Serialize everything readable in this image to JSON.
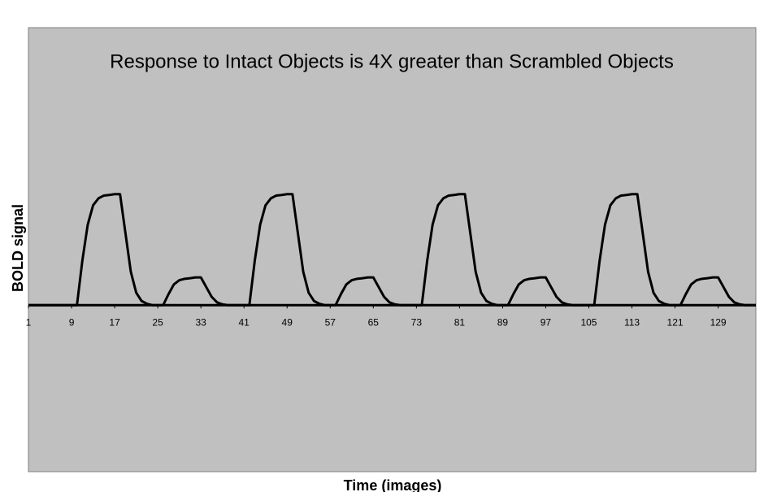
{
  "chart_data": {
    "type": "line",
    "title": "Response to Intact Objects is 4X greater than Scrambled Objects",
    "x_label": "Time (images)",
    "y_label": "BOLD signal",
    "x": [
      1,
      2,
      3,
      4,
      5,
      6,
      7,
      8,
      9,
      10,
      11,
      12,
      13,
      14,
      15,
      16,
      17,
      18,
      19,
      20,
      21,
      22,
      23,
      24,
      25,
      26,
      27,
      28,
      29,
      30,
      31,
      32,
      33,
      34,
      35,
      36,
      37,
      38,
      39,
      40,
      41,
      42,
      43,
      44,
      45,
      46,
      47,
      48,
      49,
      50,
      51,
      52,
      53,
      54,
      55,
      56,
      57,
      58,
      59,
      60,
      61,
      62,
      63,
      64,
      65,
      66,
      67,
      68,
      69,
      70,
      71,
      72,
      73,
      74,
      75,
      76,
      77,
      78,
      79,
      80,
      81,
      82,
      83,
      84,
      85,
      86,
      87,
      88,
      89,
      90,
      91,
      92,
      93,
      94,
      95,
      96,
      97,
      98,
      99,
      100,
      101,
      102,
      103,
      104,
      105,
      106,
      107,
      108,
      109,
      110,
      111,
      112,
      113,
      114,
      115,
      116,
      117,
      118,
      119,
      120,
      121,
      122,
      123,
      124,
      125,
      126,
      127,
      128,
      129,
      130,
      131,
      132,
      133,
      134,
      135,
      136
    ],
    "values": [
      0,
      0,
      0,
      0,
      0,
      0,
      0,
      0,
      0,
      0,
      1.6,
      2.9,
      3.6,
      3.85,
      3.95,
      3.97,
      4,
      4,
      2.6,
      1.2,
      0.45,
      0.15,
      0.05,
      0,
      0,
      0,
      0.4,
      0.75,
      0.9,
      0.95,
      0.97,
      1,
      1,
      0.65,
      0.3,
      0.1,
      0.03,
      0,
      0,
      0,
      0,
      0,
      1.6,
      2.9,
      3.6,
      3.85,
      3.95,
      3.97,
      4,
      4,
      2.6,
      1.2,
      0.45,
      0.15,
      0.05,
      0,
      0,
      0,
      0.4,
      0.75,
      0.9,
      0.95,
      0.97,
      1,
      1,
      0.65,
      0.3,
      0.1,
      0.03,
      0,
      0,
      0,
      0,
      0,
      1.6,
      2.9,
      3.6,
      3.85,
      3.95,
      3.97,
      4,
      4,
      2.6,
      1.2,
      0.45,
      0.15,
      0.05,
      0,
      0,
      0,
      0.4,
      0.75,
      0.9,
      0.95,
      0.97,
      1,
      1,
      0.65,
      0.3,
      0.1,
      0.03,
      0,
      0,
      0,
      0,
      0,
      1.6,
      2.9,
      3.6,
      3.85,
      3.95,
      3.97,
      4,
      4,
      2.6,
      1.2,
      0.45,
      0.15,
      0.05,
      0,
      0,
      0,
      0.4,
      0.75,
      0.9,
      0.95,
      0.97,
      1,
      1,
      0.65,
      0.3,
      0.1,
      0.03,
      0,
      0,
      0
    ],
    "color": "#000000",
    "xlim": [
      1,
      136
    ],
    "xticks": [
      1,
      9,
      17,
      25,
      33,
      41,
      49,
      57,
      65,
      73,
      81,
      89,
      97,
      105,
      113,
      121,
      129
    ],
    "ylim": [
      -6,
      10
    ],
    "background": "#c0c0c0"
  }
}
